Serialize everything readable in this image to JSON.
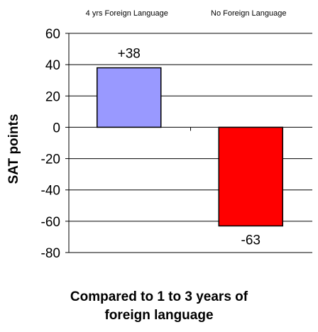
{
  "chart_data": {
    "type": "bar",
    "categories": [
      "4 yrs Foreign Language",
      "No Foreign Language"
    ],
    "values": [
      38,
      -63
    ],
    "data_labels": [
      "+38",
      "-63"
    ],
    "colors": [
      "#9999ff",
      "#ff0000"
    ],
    "ylabel": "SAT points",
    "xlabel_lines": [
      "Compared to 1 to 3 years of",
      "foreign language"
    ],
    "ylim": [
      -80,
      60
    ],
    "yticks": [
      60,
      40,
      20,
      0,
      -20,
      -40,
      -60,
      -80
    ],
    "grid": true,
    "category_label_position": "top"
  }
}
